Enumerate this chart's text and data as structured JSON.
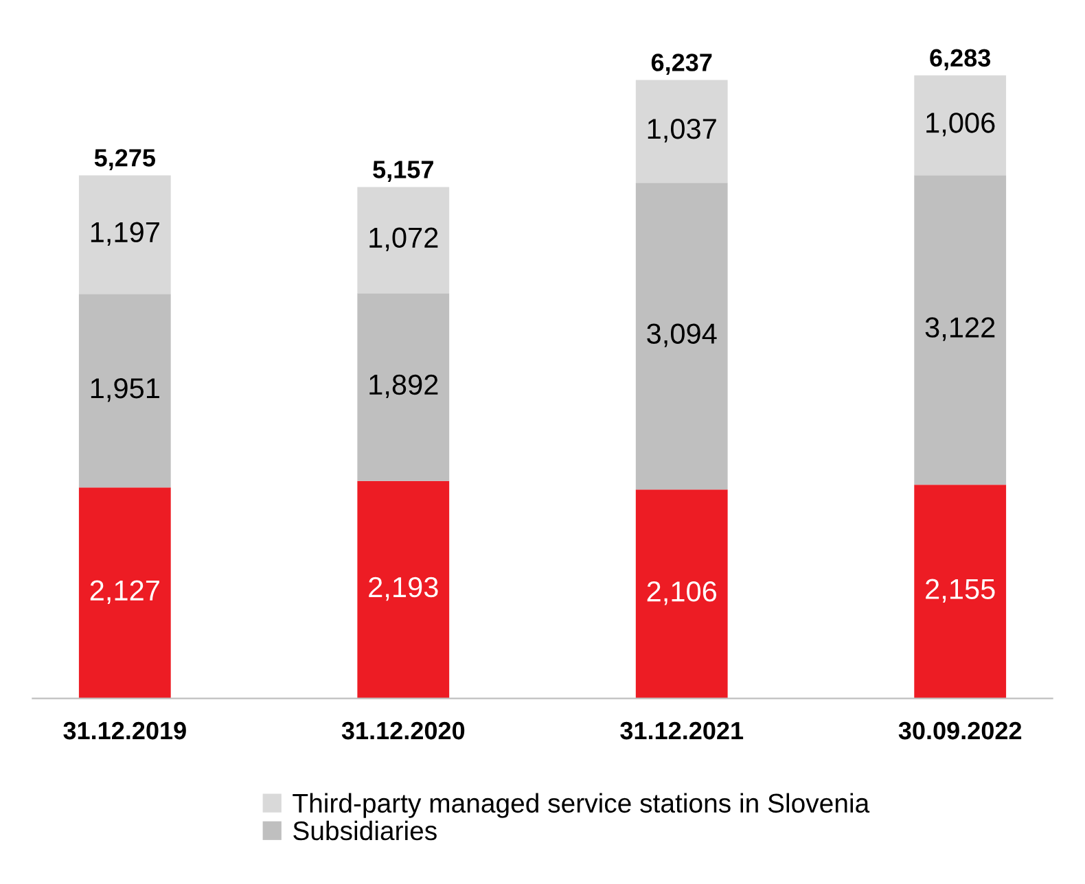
{
  "chart_data": {
    "type": "bar",
    "stacked": true,
    "legend": "bottom",
    "grid": false,
    "categories": [
      "31.12.2019",
      "31.12.2020",
      "31.12.2021",
      "30.09.2022"
    ],
    "series": [
      {
        "color": "#ed1c24",
        "values": [
          2127,
          2193,
          2106,
          2155
        ],
        "value_labels": [
          "2,127",
          "2,193",
          "2,106",
          "2,155"
        ]
      },
      {
        "name": "Subsidiaries",
        "color": "#bfbfbf",
        "values": [
          1951,
          1892,
          3094,
          3122
        ],
        "value_labels": [
          "1,951",
          "1,892",
          "3,094",
          "3,122"
        ]
      },
      {
        "name": "Third-party managed service stations in Slovenia",
        "color": "#d9d9d9",
        "values": [
          1197,
          1072,
          1037,
          1006
        ],
        "value_labels": [
          "1,197",
          "1,072",
          "1,037",
          "1,006"
        ]
      }
    ],
    "totals": [
      "5,275",
      "5,157",
      "6,237",
      "6,283"
    ]
  }
}
